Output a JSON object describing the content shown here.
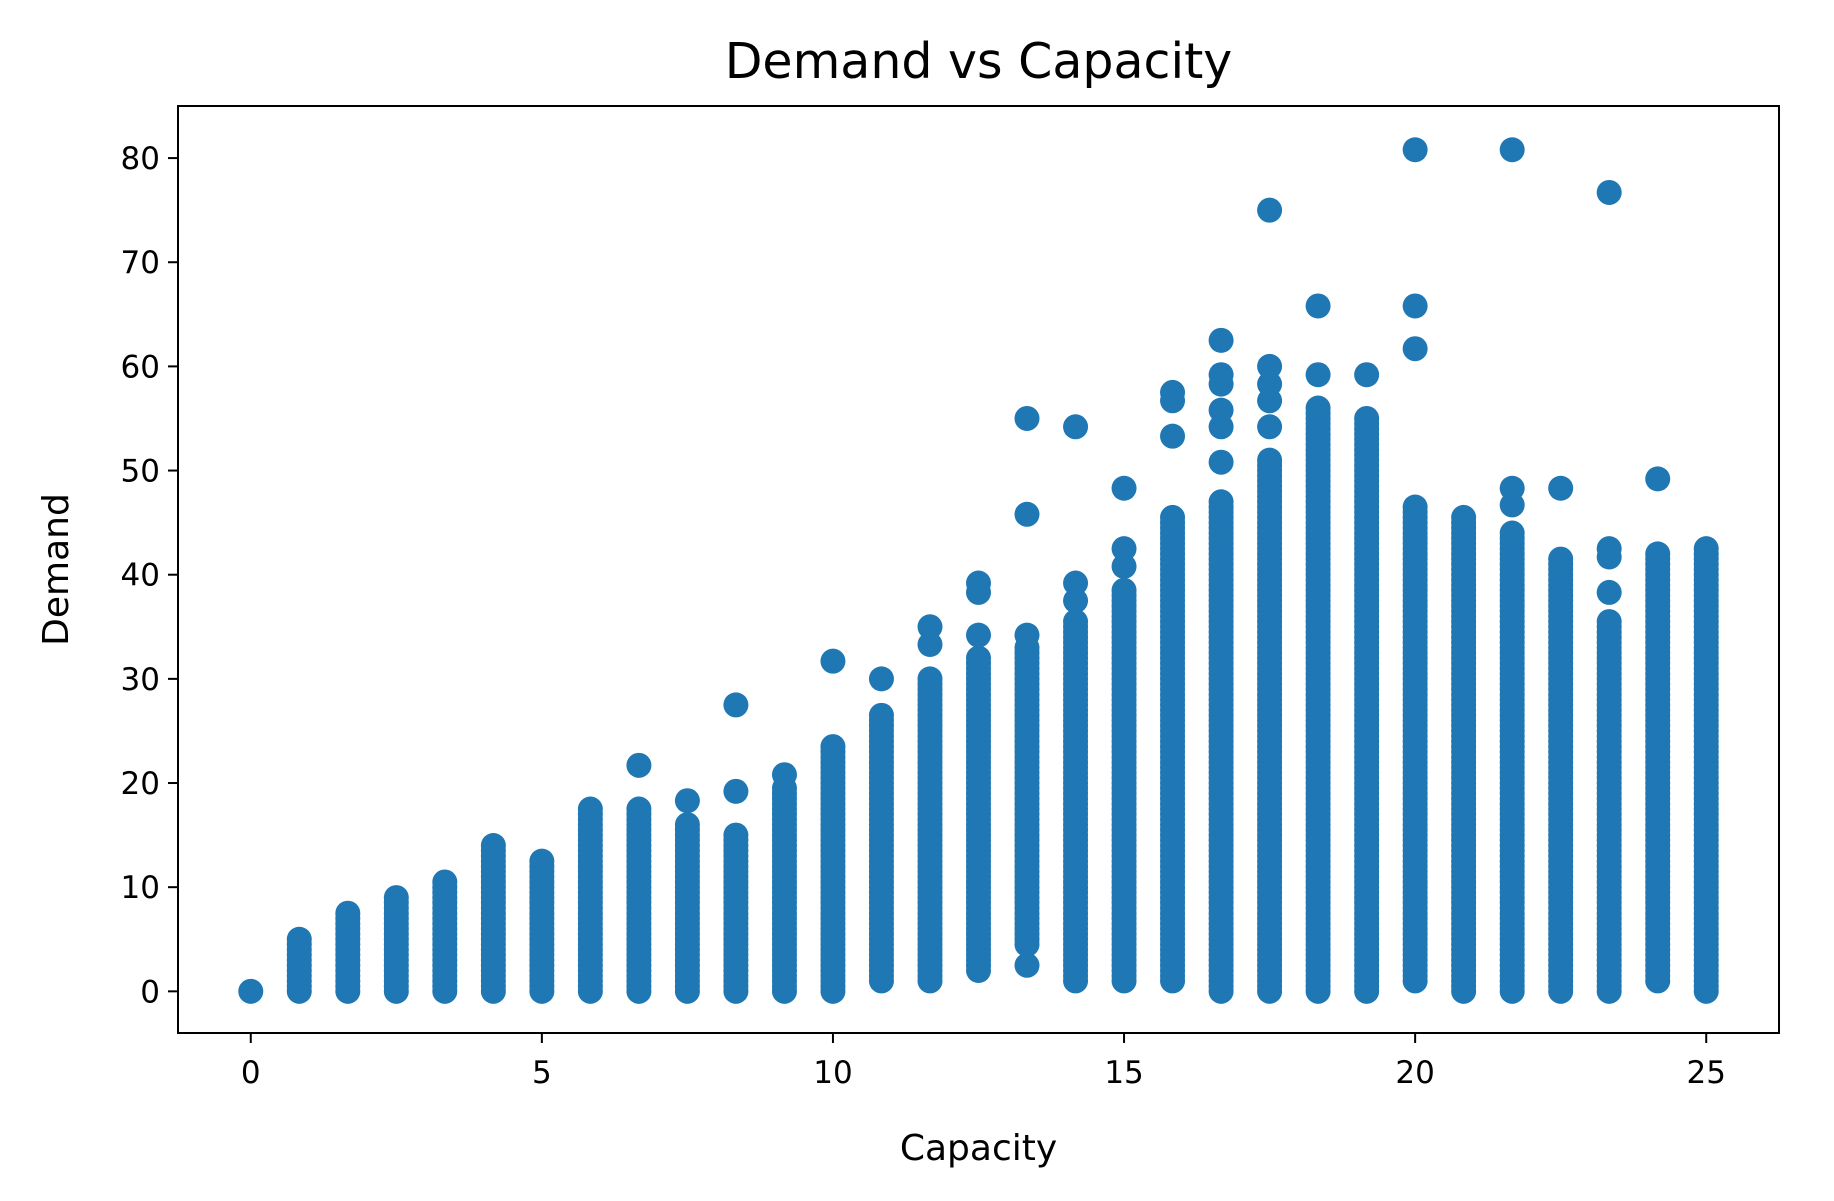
{
  "chart_data": {
    "type": "scatter",
    "title": "Demand vs Capacity",
    "xlabel": "Capacity",
    "ylabel": "Demand",
    "xlim": [
      -1.25,
      26.25
    ],
    "ylim": [
      -4,
      85
    ],
    "xticks": [
      0,
      5,
      10,
      15,
      20,
      25
    ],
    "yticks": [
      0,
      10,
      20,
      30,
      40,
      50,
      60,
      70,
      80
    ],
    "grid": false,
    "legend": "none",
    "marker_color": "#1f77b4",
    "columns": [
      {
        "x": 0,
        "min": 0,
        "max": 0,
        "extra": []
      },
      {
        "x": 0.833,
        "min": 0,
        "max": 5,
        "extra": []
      },
      {
        "x": 1.667,
        "min": 0,
        "max": 7.5,
        "extra": []
      },
      {
        "x": 2.5,
        "min": 0,
        "max": 9,
        "extra": []
      },
      {
        "x": 3.333,
        "min": 0,
        "max": 10.5,
        "extra": []
      },
      {
        "x": 4.167,
        "min": 0,
        "max": 14,
        "extra": []
      },
      {
        "x": 5,
        "min": 0,
        "max": 12.5,
        "extra": []
      },
      {
        "x": 5.833,
        "min": 0,
        "max": 17.5,
        "extra": []
      },
      {
        "x": 6.667,
        "min": 0,
        "max": 17.5,
        "extra": [
          21.7
        ]
      },
      {
        "x": 7.5,
        "min": 0,
        "max": 16,
        "extra": [
          18.3
        ]
      },
      {
        "x": 8.333,
        "min": 0,
        "max": 15,
        "extra": [
          19.2,
          27.5
        ]
      },
      {
        "x": 9.167,
        "min": 0,
        "max": 19.5,
        "extra": [
          20.8
        ]
      },
      {
        "x": 10,
        "min": 0,
        "max": 23.5,
        "extra": [
          31.7
        ]
      },
      {
        "x": 10.833,
        "min": 1,
        "max": 26.5,
        "extra": [
          30
        ]
      },
      {
        "x": 11.667,
        "min": 1,
        "max": 30,
        "extra": [
          33.3,
          35
        ]
      },
      {
        "x": 12.5,
        "min": 2,
        "max": 32,
        "extra": [
          34.2,
          38.3,
          39.2
        ]
      },
      {
        "x": 13.333,
        "min": 4.5,
        "max": 33,
        "extra": [
          2.5,
          34.2,
          45.8,
          55
        ]
      },
      {
        "x": 14.167,
        "min": 1,
        "max": 35.5,
        "extra": [
          37.5,
          39.2,
          54.2
        ]
      },
      {
        "x": 15,
        "min": 1,
        "max": 38.5,
        "extra": [
          40.8,
          42.5,
          48.3
        ]
      },
      {
        "x": 15.833,
        "min": 1,
        "max": 45.5,
        "extra": [
          53.3,
          56.7,
          57.5
        ]
      },
      {
        "x": 16.667,
        "min": 0,
        "max": 47,
        "extra": [
          50.8,
          54.2,
          55.8,
          58.3,
          59.2,
          62.5
        ]
      },
      {
        "x": 17.5,
        "min": 0,
        "max": 51,
        "extra": [
          54.2,
          56.7,
          58.3,
          60,
          75
        ]
      },
      {
        "x": 18.333,
        "min": 0,
        "max": 56,
        "extra": [
          59.2,
          65.8
        ]
      },
      {
        "x": 19.167,
        "min": 0,
        "max": 55,
        "extra": [
          59.2
        ]
      },
      {
        "x": 20,
        "min": 1,
        "max": 46.5,
        "extra": [
          61.7,
          65.8,
          80.8
        ]
      },
      {
        "x": 20.833,
        "min": 0,
        "max": 45.5,
        "extra": []
      },
      {
        "x": 21.667,
        "min": 0,
        "max": 44,
        "extra": [
          46.7,
          48.3,
          80.8
        ]
      },
      {
        "x": 22.5,
        "min": 0,
        "max": 41.5,
        "extra": [
          48.3
        ]
      },
      {
        "x": 23.333,
        "min": 0,
        "max": 35.5,
        "extra": [
          38.3,
          41.7,
          42.5,
          76.7
        ]
      },
      {
        "x": 24.167,
        "min": 1,
        "max": 42,
        "extra": [
          49.2
        ]
      },
      {
        "x": 25,
        "min": 0,
        "max": 42.5,
        "extra": []
      }
    ]
  }
}
